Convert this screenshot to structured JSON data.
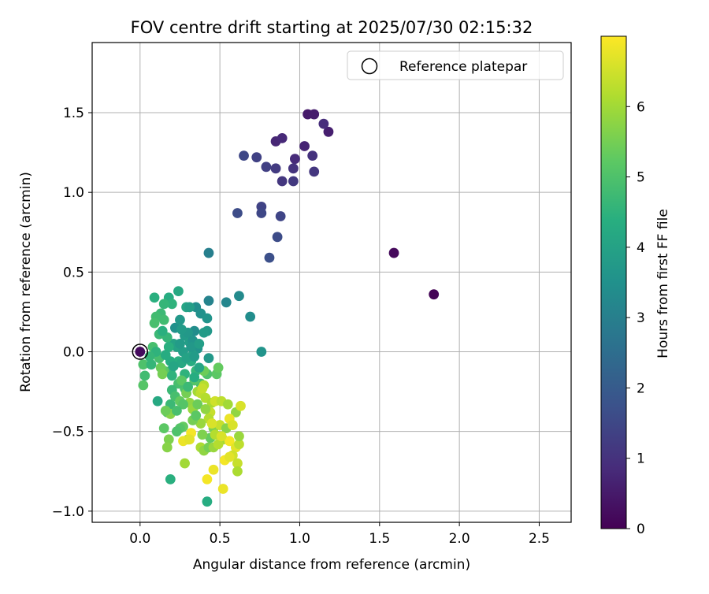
{
  "chart_data": {
    "type": "scatter",
    "title": "FOV centre drift starting at 2025/07/30 02:15:32",
    "xlabel": "Angular distance from reference (arcmin)",
    "ylabel": "Rotation from reference (arcmin)",
    "xlim": [
      -0.3,
      2.7
    ],
    "ylim": [
      -1.07,
      1.94
    ],
    "xticks": [
      0.0,
      0.5,
      1.0,
      1.5,
      2.0,
      2.5
    ],
    "xtick_labels": [
      "0.0",
      "0.5",
      "1.0",
      "1.5",
      "2.0",
      "2.5"
    ],
    "yticks": [
      -1.0,
      -0.5,
      0.0,
      0.5,
      1.0,
      1.5
    ],
    "ytick_labels": [
      "−1.0",
      "−0.5",
      "0.0",
      "0.5",
      "1.0",
      "1.5"
    ],
    "grid": true,
    "legend": {
      "position": "top-right",
      "entries": [
        "Reference platepar"
      ]
    },
    "reference_point": {
      "x": 0.0,
      "y": 0.0
    },
    "colorbar": {
      "label": "Hours from first FF file",
      "colormap": "viridis",
      "range": [
        0,
        7
      ],
      "ticks": [
        0,
        1,
        2,
        3,
        4,
        5,
        6
      ],
      "tick_labels": [
        "0",
        "1",
        "2",
        "3",
        "4",
        "5",
        "6"
      ]
    },
    "points": [
      {
        "x": 1.84,
        "y": 0.36,
        "h": 0.05
      },
      {
        "x": 1.59,
        "y": 0.62,
        "h": 0.15
      },
      {
        "x": 0.0,
        "y": 0.0,
        "h": 0.2
      },
      {
        "x": 1.05,
        "y": 1.49,
        "h": 0.5
      },
      {
        "x": 1.09,
        "y": 1.49,
        "h": 0.55
      },
      {
        "x": 1.18,
        "y": 1.38,
        "h": 0.6
      },
      {
        "x": 1.15,
        "y": 1.43,
        "h": 0.9
      },
      {
        "x": 1.03,
        "y": 1.29,
        "h": 0.7
      },
      {
        "x": 0.85,
        "y": 1.32,
        "h": 0.75
      },
      {
        "x": 0.89,
        "y": 1.34,
        "h": 0.8
      },
      {
        "x": 0.97,
        "y": 1.21,
        "h": 0.85
      },
      {
        "x": 1.08,
        "y": 1.23,
        "h": 1.0
      },
      {
        "x": 0.96,
        "y": 1.15,
        "h": 1.05
      },
      {
        "x": 1.09,
        "y": 1.13,
        "h": 1.1
      },
      {
        "x": 0.89,
        "y": 1.07,
        "h": 1.1
      },
      {
        "x": 0.96,
        "y": 1.07,
        "h": 1.15
      },
      {
        "x": 0.85,
        "y": 1.15,
        "h": 1.2
      },
      {
        "x": 0.79,
        "y": 1.16,
        "h": 1.3
      },
      {
        "x": 0.73,
        "y": 1.22,
        "h": 1.35
      },
      {
        "x": 0.65,
        "y": 1.23,
        "h": 1.5
      },
      {
        "x": 0.76,
        "y": 0.91,
        "h": 1.4
      },
      {
        "x": 0.88,
        "y": 0.85,
        "h": 1.45
      },
      {
        "x": 0.76,
        "y": 0.87,
        "h": 1.5
      },
      {
        "x": 0.61,
        "y": 0.87,
        "h": 1.6
      },
      {
        "x": 0.86,
        "y": 0.72,
        "h": 1.6
      },
      {
        "x": 0.81,
        "y": 0.59,
        "h": 1.7
      },
      {
        "x": 0.43,
        "y": 0.62,
        "h": 3.0
      },
      {
        "x": 0.43,
        "y": 0.32,
        "h": 3.1
      },
      {
        "x": 0.54,
        "y": 0.31,
        "h": 3.2
      },
      {
        "x": 0.62,
        "y": 0.35,
        "h": 3.3
      },
      {
        "x": 0.69,
        "y": 0.22,
        "h": 3.4
      },
      {
        "x": 0.76,
        "y": 0.0,
        "h": 3.6
      },
      {
        "x": 0.35,
        "y": 0.28,
        "h": 3.4
      },
      {
        "x": 0.38,
        "y": 0.24,
        "h": 3.5
      },
      {
        "x": 0.42,
        "y": 0.21,
        "h": 3.6
      },
      {
        "x": 0.42,
        "y": 0.13,
        "h": 3.7
      },
      {
        "x": 0.4,
        "y": 0.12,
        "h": 3.8
      },
      {
        "x": 0.43,
        "y": -0.04,
        "h": 3.7
      },
      {
        "x": 0.34,
        "y": 0.13,
        "h": 3.4
      },
      {
        "x": 0.36,
        "y": 0.02,
        "h": 3.6
      },
      {
        "x": 0.22,
        "y": 0.15,
        "h": 3.5
      },
      {
        "x": 0.25,
        "y": 0.2,
        "h": 3.7
      },
      {
        "x": 0.28,
        "y": 0.1,
        "h": 3.8
      },
      {
        "x": 0.31,
        "y": 0.06,
        "h": 3.9
      },
      {
        "x": 0.33,
        "y": -0.02,
        "h": 4.0
      },
      {
        "x": 0.21,
        "y": 0.05,
        "h": 4.0
      },
      {
        "x": 0.24,
        "y": 0.38,
        "h": 4.2
      },
      {
        "x": 0.29,
        "y": 0.28,
        "h": 4.1
      },
      {
        "x": 0.18,
        "y": 0.34,
        "h": 4.3
      },
      {
        "x": 0.09,
        "y": 0.34,
        "h": 4.4
      },
      {
        "x": 0.2,
        "y": 0.3,
        "h": 4.5
      },
      {
        "x": 0.15,
        "y": 0.3,
        "h": 4.6
      },
      {
        "x": 0.13,
        "y": 0.24,
        "h": 4.7
      },
      {
        "x": 0.1,
        "y": 0.22,
        "h": 4.8
      },
      {
        "x": 0.15,
        "y": 0.2,
        "h": 4.8
      },
      {
        "x": 0.09,
        "y": 0.18,
        "h": 4.9
      },
      {
        "x": 0.17,
        "y": 0.09,
        "h": 4.6
      },
      {
        "x": 0.12,
        "y": 0.11,
        "h": 4.7
      },
      {
        "x": 0.08,
        "y": 0.03,
        "h": 4.9
      },
      {
        "x": 0.12,
        "y": -0.04,
        "h": 4.9
      },
      {
        "x": 0.19,
        "y": -0.12,
        "h": 4.6
      },
      {
        "x": 0.24,
        "y": -0.06,
        "h": 4.4
      },
      {
        "x": 0.28,
        "y": -0.14,
        "h": 4.5
      },
      {
        "x": 0.32,
        "y": -0.06,
        "h": 4.3
      },
      {
        "x": 0.35,
        "y": -0.12,
        "h": 4.6
      },
      {
        "x": 0.38,
        "y": -0.2,
        "h": 4.8
      },
      {
        "x": 0.42,
        "y": -0.14,
        "h": 5.0
      },
      {
        "x": 0.48,
        "y": -0.14,
        "h": 5.2
      },
      {
        "x": 0.49,
        "y": -0.1,
        "h": 5.3
      },
      {
        "x": 0.4,
        "y": -0.12,
        "h": 5.4
      },
      {
        "x": 0.34,
        "y": -0.18,
        "h": 5.1
      },
      {
        "x": 0.28,
        "y": -0.23,
        "h": 5.0
      },
      {
        "x": 0.24,
        "y": -0.2,
        "h": 4.9
      },
      {
        "x": 0.2,
        "y": -0.24,
        "h": 4.7
      },
      {
        "x": 0.19,
        "y": -0.06,
        "h": 4.3
      },
      {
        "x": 0.15,
        "y": -0.12,
        "h": 5.2
      },
      {
        "x": 0.13,
        "y": -0.1,
        "h": 5.4
      },
      {
        "x": 0.14,
        "y": -0.14,
        "h": 5.5
      },
      {
        "x": 0.02,
        "y": -0.08,
        "h": 5.0
      },
      {
        "x": 0.02,
        "y": -0.21,
        "h": 5.1
      },
      {
        "x": 0.03,
        "y": -0.15,
        "h": 4.8
      },
      {
        "x": 0.07,
        "y": -0.08,
        "h": 4.6
      },
      {
        "x": 0.11,
        "y": -0.31,
        "h": 4.2
      },
      {
        "x": 0.19,
        "y": -0.33,
        "h": 4.7
      },
      {
        "x": 0.22,
        "y": -0.28,
        "h": 4.9
      },
      {
        "x": 0.25,
        "y": -0.31,
        "h": 5.3
      },
      {
        "x": 0.26,
        "y": -0.18,
        "h": 5.2
      },
      {
        "x": 0.29,
        "y": -0.26,
        "h": 5.5
      },
      {
        "x": 0.31,
        "y": -0.32,
        "h": 5.8
      },
      {
        "x": 0.33,
        "y": -0.36,
        "h": 5.9
      },
      {
        "x": 0.36,
        "y": -0.25,
        "h": 6.0
      },
      {
        "x": 0.4,
        "y": -0.21,
        "h": 6.2
      },
      {
        "x": 0.38,
        "y": -0.26,
        "h": 6.3
      },
      {
        "x": 0.39,
        "y": -0.23,
        "h": 6.4
      },
      {
        "x": 0.41,
        "y": -0.29,
        "h": 6.2
      },
      {
        "x": 0.45,
        "y": -0.32,
        "h": 6.1
      },
      {
        "x": 0.47,
        "y": -0.31,
        "h": 6.5
      },
      {
        "x": 0.51,
        "y": -0.31,
        "h": 6.3
      },
      {
        "x": 0.55,
        "y": -0.33,
        "h": 6.0
      },
      {
        "x": 0.6,
        "y": -0.38,
        "h": 5.8
      },
      {
        "x": 0.63,
        "y": -0.34,
        "h": 6.6
      },
      {
        "x": 0.44,
        "y": -0.38,
        "h": 6.4
      },
      {
        "x": 0.43,
        "y": -0.42,
        "h": 6.2
      },
      {
        "x": 0.38,
        "y": -0.45,
        "h": 5.9
      },
      {
        "x": 0.33,
        "y": -0.43,
        "h": 5.5
      },
      {
        "x": 0.27,
        "y": -0.47,
        "h": 5.3
      },
      {
        "x": 0.25,
        "y": -0.48,
        "h": 5.1
      },
      {
        "x": 0.17,
        "y": -0.38,
        "h": 5.0
      },
      {
        "x": 0.19,
        "y": -0.39,
        "h": 5.7
      },
      {
        "x": 0.16,
        "y": -0.37,
        "h": 5.4
      },
      {
        "x": 0.15,
        "y": -0.48,
        "h": 5.2
      },
      {
        "x": 0.18,
        "y": -0.55,
        "h": 5.6
      },
      {
        "x": 0.17,
        "y": -0.6,
        "h": 5.7
      },
      {
        "x": 0.19,
        "y": -0.8,
        "h": 4.4
      },
      {
        "x": 0.42,
        "y": -0.94,
        "h": 4.3
      },
      {
        "x": 0.28,
        "y": -0.7,
        "h": 6.0
      },
      {
        "x": 0.3,
        "y": -0.55,
        "h": 6.3
      },
      {
        "x": 0.27,
        "y": -0.56,
        "h": 6.8
      },
      {
        "x": 0.32,
        "y": -0.51,
        "h": 6.9
      },
      {
        "x": 0.31,
        "y": -0.55,
        "h": 6.7
      },
      {
        "x": 0.38,
        "y": -0.6,
        "h": 6.1
      },
      {
        "x": 0.4,
        "y": -0.62,
        "h": 5.8
      },
      {
        "x": 0.43,
        "y": -0.6,
        "h": 5.5
      },
      {
        "x": 0.46,
        "y": -0.6,
        "h": 5.9
      },
      {
        "x": 0.44,
        "y": -0.54,
        "h": 5.3
      },
      {
        "x": 0.46,
        "y": -0.48,
        "h": 5.6
      },
      {
        "x": 0.47,
        "y": -0.52,
        "h": 6.2
      },
      {
        "x": 0.5,
        "y": -0.46,
        "h": 6.4
      },
      {
        "x": 0.52,
        "y": -0.55,
        "h": 6.0
      },
      {
        "x": 0.54,
        "y": -0.48,
        "h": 5.7
      },
      {
        "x": 0.56,
        "y": -0.42,
        "h": 6.8
      },
      {
        "x": 0.58,
        "y": -0.46,
        "h": 6.6
      },
      {
        "x": 0.56,
        "y": -0.56,
        "h": 6.9
      },
      {
        "x": 0.6,
        "y": -0.6,
        "h": 6.7
      },
      {
        "x": 0.62,
        "y": -0.58,
        "h": 6.3
      },
      {
        "x": 0.58,
        "y": -0.65,
        "h": 6.5
      },
      {
        "x": 0.61,
        "y": -0.7,
        "h": 6.4
      },
      {
        "x": 0.61,
        "y": -0.75,
        "h": 6.1
      },
      {
        "x": 0.62,
        "y": -0.53,
        "h": 5.9
      },
      {
        "x": 0.53,
        "y": -0.68,
        "h": 6.9
      },
      {
        "x": 0.56,
        "y": -0.66,
        "h": 6.7
      },
      {
        "x": 0.46,
        "y": -0.74,
        "h": 6.8
      },
      {
        "x": 0.42,
        "y": -0.8,
        "h": 6.9
      },
      {
        "x": 0.52,
        "y": -0.86,
        "h": 6.8
      },
      {
        "x": 0.23,
        "y": -0.5,
        "h": 5.0
      },
      {
        "x": 0.26,
        "y": -0.07,
        "h": 4.2
      },
      {
        "x": 0.23,
        "y": 0.03,
        "h": 4.0
      },
      {
        "x": 0.27,
        "y": 0.0,
        "h": 3.9
      },
      {
        "x": 0.3,
        "y": 0.12,
        "h": 3.7
      },
      {
        "x": 0.33,
        "y": 0.07,
        "h": 3.6
      },
      {
        "x": 0.26,
        "y": 0.14,
        "h": 3.8
      },
      {
        "x": 0.31,
        "y": 0.28,
        "h": 3.9
      },
      {
        "x": 0.18,
        "y": 0.03,
        "h": 4.4
      },
      {
        "x": 0.16,
        "y": -0.02,
        "h": 4.3
      },
      {
        "x": 0.1,
        "y": 0.0,
        "h": 4.5
      },
      {
        "x": 0.06,
        "y": -0.03,
        "h": 4.6
      },
      {
        "x": 0.14,
        "y": 0.13,
        "h": 4.4
      },
      {
        "x": 0.2,
        "y": -0.15,
        "h": 4.5
      },
      {
        "x": 0.37,
        "y": -0.1,
        "h": 4.1
      },
      {
        "x": 0.34,
        "y": -0.16,
        "h": 4.3
      },
      {
        "x": 0.3,
        "y": -0.22,
        "h": 4.7
      },
      {
        "x": 0.27,
        "y": -0.33,
        "h": 5.1
      },
      {
        "x": 0.36,
        "y": -0.33,
        "h": 5.4
      },
      {
        "x": 0.41,
        "y": -0.36,
        "h": 5.8
      },
      {
        "x": 0.39,
        "y": -0.52,
        "h": 5.6
      },
      {
        "x": 0.35,
        "y": -0.4,
        "h": 5.2
      },
      {
        "x": 0.23,
        "y": -0.37,
        "h": 4.9
      },
      {
        "x": 0.21,
        "y": -0.09,
        "h": 4.1
      },
      {
        "x": 0.25,
        "y": 0.05,
        "h": 3.8
      },
      {
        "x": 0.29,
        "y": -0.04,
        "h": 4.0
      },
      {
        "x": 0.45,
        "y": -0.45,
        "h": 6.6
      },
      {
        "x": 0.49,
        "y": -0.58,
        "h": 6.2
      },
      {
        "x": 0.51,
        "y": -0.53,
        "h": 6.6
      },
      {
        "x": 0.34,
        "y": -0.03,
        "h": 3.8
      },
      {
        "x": 0.32,
        "y": 0.03,
        "h": 3.7
      },
      {
        "x": 0.37,
        "y": 0.05,
        "h": 3.9
      }
    ]
  }
}
